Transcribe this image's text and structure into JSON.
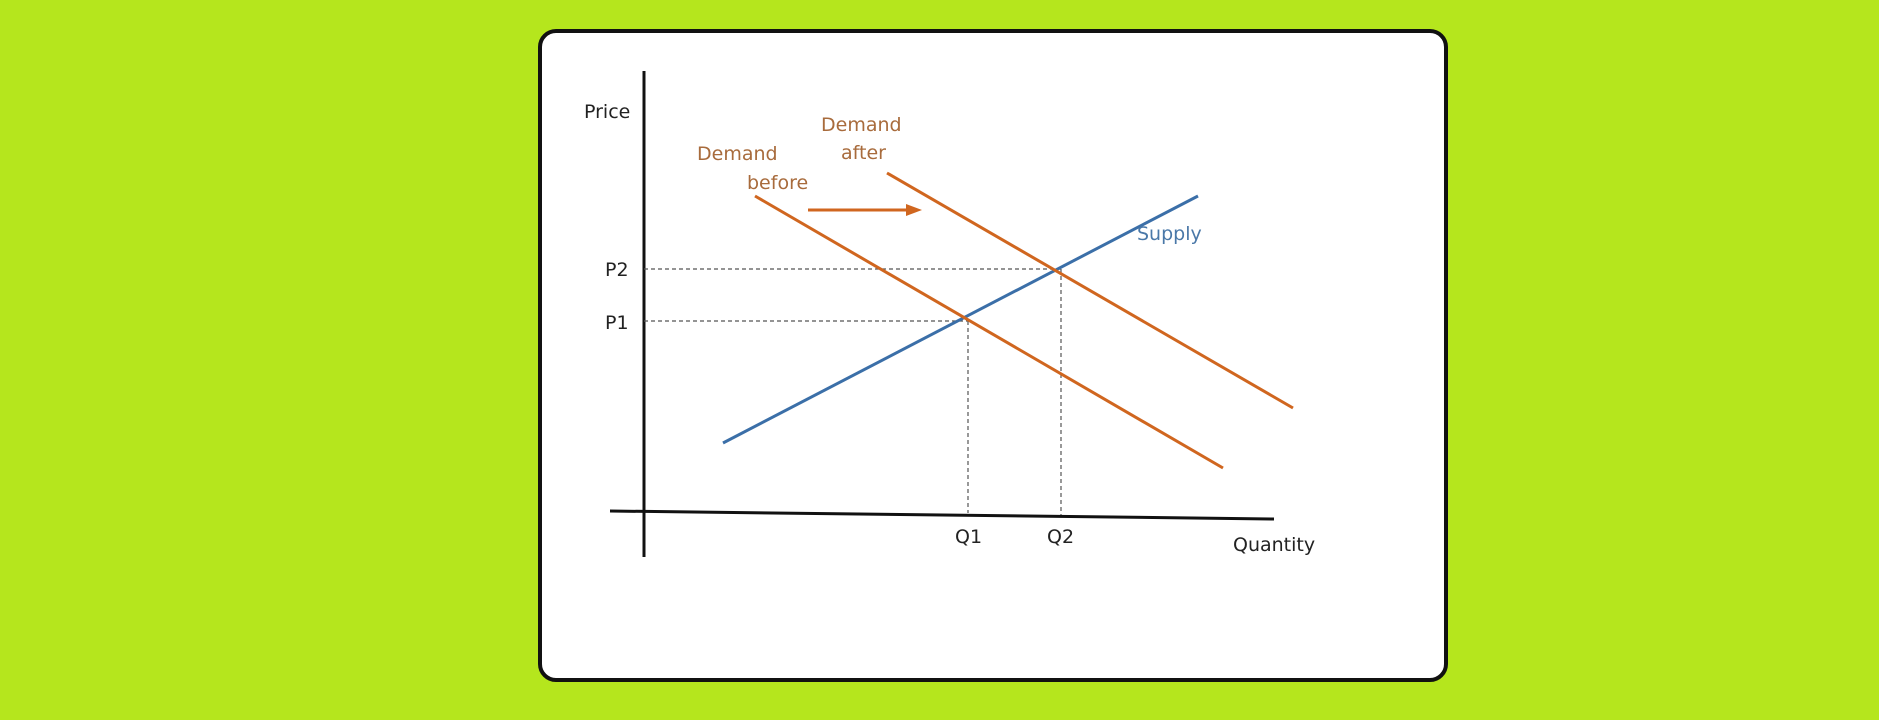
{
  "diagram": {
    "axes": {
      "y_label": "Price",
      "x_label": "Quantity"
    },
    "price_ticks": [
      "P2",
      "P1"
    ],
    "quantity_ticks": [
      "Q1",
      "Q2"
    ],
    "curves": {
      "demand_before": {
        "label_line1": "Demand",
        "label_line2": "before"
      },
      "demand_after": {
        "label_line1": "Demand",
        "label_line2": "after"
      },
      "supply": {
        "label": "Supply"
      }
    },
    "shift": "right"
  },
  "colors": {
    "background": "#b5e61d",
    "card": "#ffffff",
    "axis": "#111111",
    "demand": "#d0661f",
    "demand_label": "#a86b3c",
    "supply": "#3b6fa8",
    "supply_label": "#4a78a8",
    "guide": "#555555"
  }
}
